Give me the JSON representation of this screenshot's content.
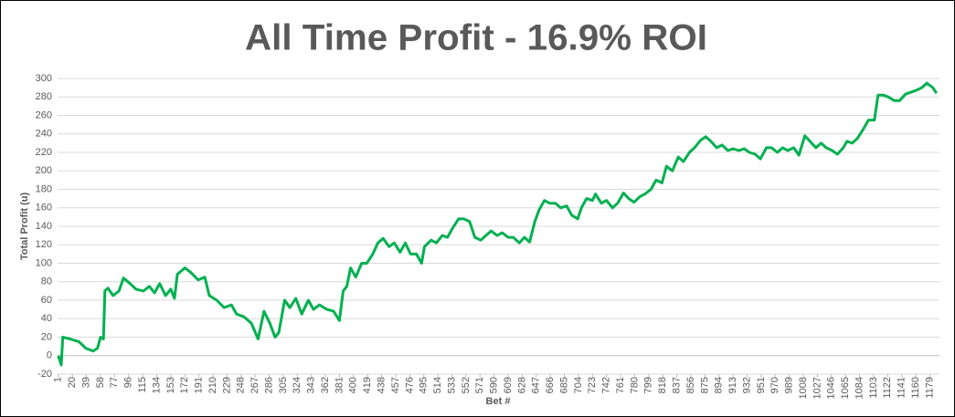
{
  "chart_data": {
    "type": "line",
    "title": "All Time Profit - 16.9% ROI",
    "xlabel": "Bet #",
    "ylabel": "Total Profit (u)",
    "color": "#00b050",
    "grid": true,
    "x": [
      1,
      5,
      7,
      17,
      29,
      38,
      48,
      54,
      58,
      62,
      64,
      68,
      75,
      83,
      89,
      98,
      106,
      116,
      124,
      131,
      138,
      146,
      153,
      158,
      162,
      172,
      180,
      190,
      199,
      205,
      215,
      225,
      235,
      242,
      252,
      262,
      271,
      279,
      287,
      294,
      299,
      307,
      314,
      322,
      330,
      339,
      346,
      354,
      364,
      373,
      381,
      386,
      391,
      396,
      403,
      411,
      418,
      426,
      433,
      440,
      448,
      455,
      463,
      470,
      477,
      485,
      492,
      496,
      505,
      512,
      520,
      527,
      534,
      542,
      549,
      557,
      564,
      572,
      579,
      586,
      594,
      601,
      609,
      616,
      624,
      631,
      638,
      645,
      651,
      658,
      665,
      673,
      680,
      688,
      695,
      703,
      708,
      715,
      723,
      727,
      735,
      742,
      750,
      757,
      765,
      772,
      779,
      787,
      794,
      802,
      809,
      817,
      823,
      831,
      839,
      846,
      854,
      861,
      869,
      876,
      883,
      891,
      898,
      906,
      913,
      921,
      928,
      935,
      943,
      950,
      958,
      965,
      973,
      980,
      987,
      995,
      1002,
      1010,
      1017,
      1025,
      1032,
      1039,
      1047,
      1054,
      1062,
      1067,
      1074,
      1081,
      1089,
      1096,
      1104,
      1109,
      1116,
      1123,
      1131,
      1138,
      1146,
      1153,
      1160,
      1168,
      1175,
      1183,
      1188
    ],
    "values": [
      0,
      -10,
      20,
      18,
      15,
      8,
      5,
      8,
      20,
      18,
      70,
      73,
      65,
      70,
      84,
      78,
      72,
      70,
      75,
      68,
      78,
      65,
      72,
      62,
      88,
      95,
      90,
      82,
      85,
      65,
      60,
      52,
      55,
      45,
      42,
      35,
      18,
      48,
      35,
      20,
      25,
      60,
      52,
      62,
      45,
      60,
      50,
      55,
      50,
      48,
      38,
      70,
      75,
      95,
      85,
      100,
      100,
      110,
      122,
      127,
      118,
      122,
      112,
      122,
      110,
      110,
      100,
      118,
      125,
      122,
      130,
      128,
      138,
      148,
      148,
      145,
      128,
      125,
      130,
      135,
      130,
      133,
      128,
      128,
      122,
      128,
      123,
      145,
      158,
      168,
      165,
      165,
      160,
      162,
      152,
      148,
      160,
      170,
      168,
      175,
      165,
      168,
      160,
      165,
      176,
      170,
      166,
      172,
      175,
      180,
      190,
      187,
      205,
      200,
      215,
      210,
      220,
      225,
      233,
      237,
      232,
      225,
      228,
      222,
      224,
      222,
      224,
      220,
      218,
      213,
      225,
      225,
      220,
      225,
      222,
      225,
      217,
      238,
      232,
      225,
      230,
      225,
      222,
      218,
      225,
      232,
      230,
      235,
      245,
      255,
      255,
      282,
      282,
      280,
      276,
      276,
      283,
      285,
      287,
      290,
      295,
      290,
      284
    ],
    "xlim": [
      0,
      1192
    ],
    "ylim": [
      -20,
      300
    ],
    "xticks": [
      1,
      20,
      39,
      58,
      77,
      96,
      115,
      134,
      153,
      172,
      191,
      210,
      229,
      248,
      267,
      286,
      305,
      324,
      343,
      362,
      381,
      400,
      419,
      438,
      457,
      476,
      495,
      514,
      533,
      552,
      571,
      590,
      609,
      628,
      647,
      666,
      685,
      704,
      723,
      742,
      761,
      780,
      799,
      818,
      837,
      856,
      875,
      894,
      913,
      932,
      951,
      970,
      989,
      1008,
      1027,
      1046,
      1065,
      1084,
      1103,
      1122,
      1141,
      1160,
      1179
    ],
    "yticks": [
      -20,
      0,
      20,
      40,
      60,
      80,
      100,
      120,
      140,
      160,
      180,
      200,
      220,
      240,
      260,
      280,
      300
    ]
  }
}
